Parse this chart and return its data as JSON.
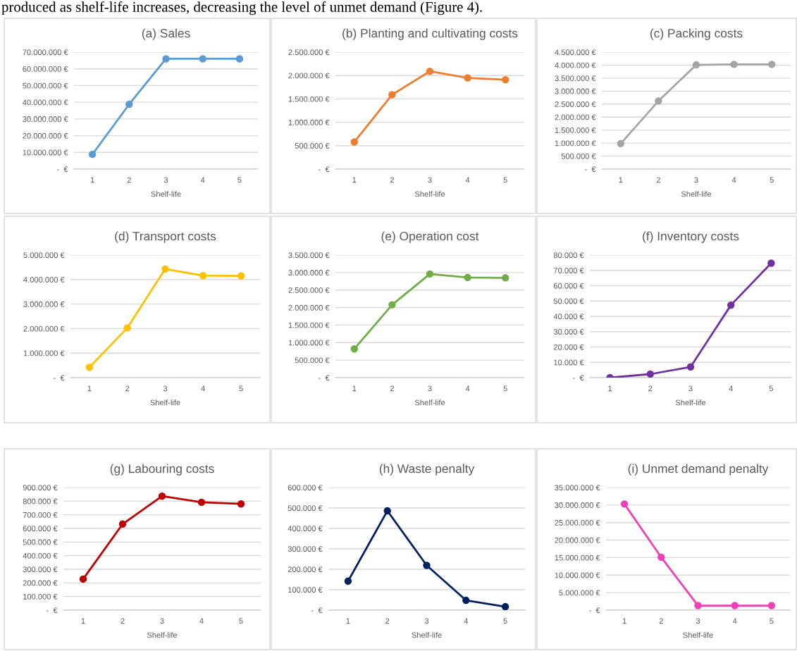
{
  "chart_data": [
    {
      "type": "line",
      "title": "(a) Sales",
      "xlabel": "Shelf-life",
      "categories": [
        "1",
        "2",
        "3",
        "4",
        "5"
      ],
      "series": [
        {
          "color": "#5b9bd5",
          "values": [
            8800000,
            38800000,
            66000000,
            66000000,
            66000000
          ]
        }
      ],
      "ylim": [
        0,
        70000000
      ],
      "yticks": [
        {
          "value": 0,
          "label": "-  €"
        },
        {
          "value": 10000000,
          "label": "10.000.000 €"
        },
        {
          "value": 20000000,
          "label": "20.000.000 €"
        },
        {
          "value": 30000000,
          "label": "30.000.000 €"
        },
        {
          "value": 40000000,
          "label": "40.000.000 €"
        },
        {
          "value": 50000000,
          "label": "50.000.000 €"
        },
        {
          "value": 60000000,
          "label": "60.000.000 €"
        },
        {
          "value": 70000000,
          "label": "70.000.000 €"
        }
      ],
      "grid": "y",
      "marker": "circle",
      "line_style": "solid",
      "annotations": [
        "produced as shelf-life increases, decreasing the level of unmet demand (Figure 4)."
      ]
    },
    {
      "type": "line",
      "title": "(b) Planting and cultivating costs",
      "xlabel": "Shelf-life",
      "categories": [
        "1",
        "2",
        "3",
        "4",
        "5"
      ],
      "series": [
        {
          "color": "#ed7d31",
          "values": [
            580000,
            1590000,
            2090000,
            1950000,
            1910000
          ]
        }
      ],
      "ylim": [
        0,
        2500000
      ],
      "yticks": [
        {
          "value": 0,
          "label": "-  €"
        },
        {
          "value": 500000,
          "label": "500.000 €"
        },
        {
          "value": 1000000,
          "label": "1.000.000 €"
        },
        {
          "value": 1500000,
          "label": "1.500.000 €"
        },
        {
          "value": 2000000,
          "label": "2.000.000 €"
        },
        {
          "value": 2500000,
          "label": "2.500.000 €"
        }
      ],
      "grid": "y",
      "marker": "circle",
      "line_style": "solid"
    },
    {
      "type": "line",
      "title": "(c) Packing costs",
      "xlabel": "Shelf-life",
      "categories": [
        "1",
        "2",
        "3",
        "4",
        "5"
      ],
      "series": [
        {
          "color": "#a5a5a5",
          "values": [
            980000,
            2620000,
            4010000,
            4030000,
            4030000
          ]
        }
      ],
      "ylim": [
        0,
        4500000
      ],
      "yticks": [
        {
          "value": 0,
          "label": "-  €"
        },
        {
          "value": 500000,
          "label": "500.000 €"
        },
        {
          "value": 1000000,
          "label": "1.000.000 €"
        },
        {
          "value": 1500000,
          "label": "1.500.000 €"
        },
        {
          "value": 2000000,
          "label": "2.000.000 €"
        },
        {
          "value": 2500000,
          "label": "2.500.000 €"
        },
        {
          "value": 3000000,
          "label": "3.000.000 €"
        },
        {
          "value": 3500000,
          "label": "3.500.000 €"
        },
        {
          "value": 4000000,
          "label": "4.000.000 €"
        },
        {
          "value": 4500000,
          "label": "4.500.000 €"
        }
      ],
      "grid": "y",
      "marker": "circle",
      "line_style": "solid"
    },
    {
      "type": "line",
      "title": "(d) Transport costs",
      "xlabel": "Shelf-life",
      "categories": [
        "1",
        "2",
        "3",
        "4",
        "5"
      ],
      "series": [
        {
          "color": "#ffc000",
          "values": [
            420000,
            2030000,
            4430000,
            4160000,
            4150000
          ]
        }
      ],
      "ylim": [
        0,
        5000000
      ],
      "yticks": [
        {
          "value": 0,
          "label": "-  €"
        },
        {
          "value": 1000000,
          "label": "1.000.000 €"
        },
        {
          "value": 2000000,
          "label": "2.000.000 €"
        },
        {
          "value": 3000000,
          "label": "3.000.000 €"
        },
        {
          "value": 4000000,
          "label": "4.000.000 €"
        },
        {
          "value": 5000000,
          "label": "5.000.000 €"
        }
      ],
      "grid": "y",
      "marker": "circle",
      "line_style": "solid"
    },
    {
      "type": "line",
      "title": "(e) Operation cost",
      "xlabel": "Shelf-life",
      "categories": [
        "1",
        "2",
        "3",
        "4",
        "5"
      ],
      "series": [
        {
          "color": "#70ad47",
          "values": [
            820000,
            2080000,
            2960000,
            2860000,
            2850000
          ]
        }
      ],
      "ylim": [
        0,
        3500000
      ],
      "yticks": [
        {
          "value": 0,
          "label": "-  €"
        },
        {
          "value": 500000,
          "label": "500.000 €"
        },
        {
          "value": 1000000,
          "label": "1.000.000 €"
        },
        {
          "value": 1500000,
          "label": "1.500.000 €"
        },
        {
          "value": 2000000,
          "label": "2.000.000 €"
        },
        {
          "value": 2500000,
          "label": "2.500.000 €"
        },
        {
          "value": 3000000,
          "label": "3.000.000 €"
        },
        {
          "value": 3500000,
          "label": "3.500.000 €"
        }
      ],
      "grid": "y",
      "marker": "circle",
      "line_style": "solid"
    },
    {
      "type": "line",
      "title": "(f) Inventory costs",
      "xlabel": "Shelf-life",
      "categories": [
        "1",
        "2",
        "3",
        "4",
        "5"
      ],
      "series": [
        {
          "color": "#7030a0",
          "values": [
            0,
            2300,
            7000,
            47300,
            74700
          ]
        }
      ],
      "ylim": [
        0,
        80000
      ],
      "yticks": [
        {
          "value": 0,
          "label": "-  €"
        },
        {
          "value": 10000,
          "label": "10.000 €"
        },
        {
          "value": 20000,
          "label": "20.000 €"
        },
        {
          "value": 30000,
          "label": "30.000 €"
        },
        {
          "value": 40000,
          "label": "40.000 €"
        },
        {
          "value": 50000,
          "label": "50.000 €"
        },
        {
          "value": 60000,
          "label": "60.000 €"
        },
        {
          "value": 70000,
          "label": "70.000 €"
        },
        {
          "value": 80000,
          "label": "80.000 €"
        }
      ],
      "grid": "y",
      "marker": "circle",
      "line_style": "solid"
    },
    {
      "type": "line",
      "title": "(g) Labouring costs",
      "xlabel": "Shelf-life",
      "categories": [
        "1",
        "2",
        "3",
        "4",
        "5"
      ],
      "series": [
        {
          "color": "#c00000",
          "values": [
            228000,
            632000,
            837000,
            792000,
            780000
          ]
        }
      ],
      "ylim": [
        0,
        900000
      ],
      "yticks": [
        {
          "value": 0,
          "label": "-  €"
        },
        {
          "value": 100000,
          "label": "100.000 €"
        },
        {
          "value": 200000,
          "label": "200.000 €"
        },
        {
          "value": 300000,
          "label": "300.000 €"
        },
        {
          "value": 400000,
          "label": "400.000 €"
        },
        {
          "value": 500000,
          "label": "500.000 €"
        },
        {
          "value": 600000,
          "label": "600.000 €"
        },
        {
          "value": 700000,
          "label": "700.000 €"
        },
        {
          "value": 800000,
          "label": "800.000 €"
        },
        {
          "value": 900000,
          "label": "900.000 €"
        }
      ],
      "grid": "y",
      "marker": "circle",
      "line_style": "solid"
    },
    {
      "type": "line",
      "title": "(h) Waste penalty",
      "xlabel": "Shelf-life",
      "categories": [
        "1",
        "2",
        "3",
        "4",
        "5"
      ],
      "series": [
        {
          "color": "#002060",
          "values": [
            142000,
            486000,
            219000,
            48000,
            17000
          ]
        }
      ],
      "ylim": [
        0,
        600000
      ],
      "yticks": [
        {
          "value": 0,
          "label": "-  €"
        },
        {
          "value": 100000,
          "label": "100.000 €"
        },
        {
          "value": 200000,
          "label": "200.000 €"
        },
        {
          "value": 300000,
          "label": "300.000 €"
        },
        {
          "value": 400000,
          "label": "400.000 €"
        },
        {
          "value": 500000,
          "label": "500.000 €"
        },
        {
          "value": 600000,
          "label": "600.000 €"
        }
      ],
      "grid": "y",
      "marker": "circle",
      "line_style": "solid"
    },
    {
      "type": "line",
      "title": "(i) Unmet demand penalty",
      "xlabel": "Shelf-life",
      "categories": [
        "1",
        "2",
        "3",
        "4",
        "5"
      ],
      "series": [
        {
          "color": "#ec42b9",
          "values": [
            30300000,
            15100000,
            1300000,
            1300000,
            1300000
          ]
        }
      ],
      "ylim": [
        0,
        35000000
      ],
      "yticks": [
        {
          "value": 0,
          "label": "-  €"
        },
        {
          "value": 5000000,
          "label": "5.000.000 €"
        },
        {
          "value": 10000000,
          "label": "10.000.000 €"
        },
        {
          "value": 15000000,
          "label": "15.000.000 €"
        },
        {
          "value": 20000000,
          "label": "20.000.000 €"
        },
        {
          "value": 25000000,
          "label": "25.000.000 €"
        },
        {
          "value": 30000000,
          "label": "30.000.000 €"
        },
        {
          "value": 35000000,
          "label": "35.000.000 €"
        }
      ],
      "grid": "y",
      "marker": "circle",
      "line_style": "solid"
    }
  ]
}
